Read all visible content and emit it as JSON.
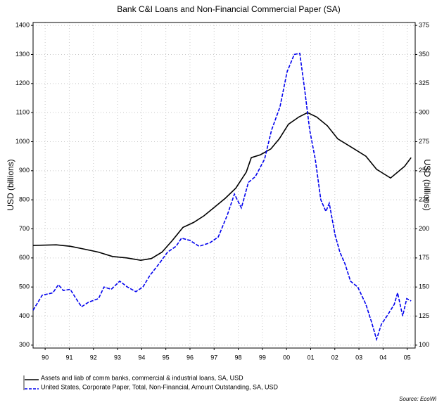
{
  "chart_data": {
    "type": "line",
    "title": "Bank C&I Loans and Non-Financial Commercial Paper (SA)",
    "ylabel": "USD (billions)",
    "y2label": "USD (billions)",
    "source": "Source: EcoWi",
    "grid": true,
    "xlim": [
      1990,
      2005.83
    ],
    "xticks": [
      {
        "value": 1990.5,
        "label": "90"
      },
      {
        "value": 1991.5,
        "label": "91"
      },
      {
        "value": 1992.5,
        "label": "92"
      },
      {
        "value": 1993.5,
        "label": "93"
      },
      {
        "value": 1994.5,
        "label": "94"
      },
      {
        "value": 1995.5,
        "label": "95"
      },
      {
        "value": 1996.5,
        "label": "96"
      },
      {
        "value": 1997.5,
        "label": "97"
      },
      {
        "value": 1998.5,
        "label": "98"
      },
      {
        "value": 1999.5,
        "label": "99"
      },
      {
        "value": 2000.5,
        "label": "00"
      },
      {
        "value": 2001.5,
        "label": "01"
      },
      {
        "value": 2002.5,
        "label": "02"
      },
      {
        "value": 2003.5,
        "label": "03"
      },
      {
        "value": 2004.5,
        "label": "04"
      },
      {
        "value": 2005.5,
        "label": "05"
      }
    ],
    "ylim": [
      290,
      1410
    ],
    "yticks": [
      300,
      400,
      500,
      600,
      700,
      800,
      900,
      1000,
      1100,
      1200,
      1300,
      1400
    ],
    "y2lim": [
      97.5,
      377.5
    ],
    "y2ticks": [
      100,
      125,
      150,
      175,
      200,
      225,
      250,
      275,
      300,
      325,
      350,
      375
    ],
    "series": [
      {
        "name": "Assets and liab of comm banks, commercial & industrial loans, SA, USD",
        "color": "#000000",
        "line_style": "solid",
        "axis": "y",
        "x": [
          1990.0,
          1990.96,
          1991.55,
          1992.13,
          1992.71,
          1993.29,
          1993.88,
          1994.46,
          1994.9,
          1995.34,
          1995.77,
          1996.21,
          1996.65,
          1997.08,
          1997.52,
          1997.96,
          1998.4,
          1998.83,
          1999.04,
          1999.42,
          1999.85,
          2000.2,
          2000.58,
          2001.01,
          2001.37,
          2001.75,
          2002.19,
          2002.62,
          2003.21,
          2003.79,
          2004.23,
          2004.52,
          2004.81,
          2005.1,
          2005.39,
          2005.66
        ],
        "values": [
          643,
          645,
          640,
          630,
          620,
          605,
          600,
          592,
          598,
          620,
          660,
          705,
          722,
          745,
          775,
          805,
          840,
          895,
          945,
          955,
          975,
          1010,
          1060,
          1085,
          1100,
          1085,
          1055,
          1010,
          980,
          950,
          905,
          890,
          875,
          895,
          915,
          945
        ]
      },
      {
        "name": "United States, Corporate Paper, Total, Non-Financial, Amount Outstanding, SA, USD",
        "color": "#0000ee",
        "line_style": "dashed",
        "axis": "y2",
        "x": [
          1990.0,
          1990.38,
          1990.82,
          1991.05,
          1991.25,
          1991.54,
          1991.78,
          1992.01,
          1992.3,
          1992.71,
          1992.94,
          1993.24,
          1993.59,
          1993.91,
          1994.26,
          1994.55,
          1994.84,
          1995.22,
          1995.57,
          1995.92,
          1996.15,
          1996.5,
          1996.88,
          1997.32,
          1997.67,
          1998.05,
          1998.34,
          1998.63,
          1998.92,
          1999.21,
          1999.59,
          1999.88,
          2000.23,
          2000.52,
          2000.82,
          2001.05,
          2001.25,
          2001.46,
          2001.69,
          2001.92,
          2002.13,
          2002.27,
          2002.51,
          2002.71,
          2002.92,
          2003.15,
          2003.45,
          2003.79,
          2004.02,
          2004.23,
          2004.43,
          2004.66,
          2004.96,
          2005.1,
          2005.31,
          2005.48,
          2005.66
        ],
        "values": [
          130,
          143,
          145,
          152,
          147,
          148,
          140,
          133,
          137,
          140,
          150,
          148,
          155,
          150,
          146,
          150,
          160,
          170,
          180,
          185,
          192,
          190,
          185,
          188,
          193,
          212,
          230,
          218,
          240,
          245,
          260,
          285,
          305,
          335,
          350,
          351,
          320,
          285,
          260,
          225,
          215,
          222,
          195,
          180,
          170,
          155,
          150,
          135,
          120,
          105,
          118,
          125,
          135,
          145,
          125,
          140,
          138
        ]
      }
    ]
  }
}
